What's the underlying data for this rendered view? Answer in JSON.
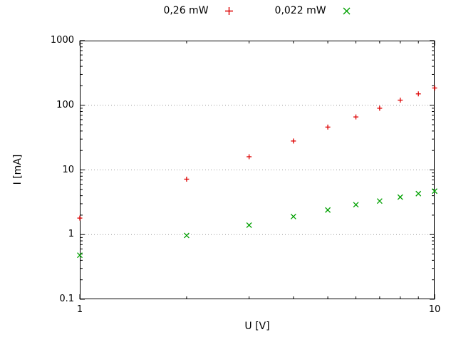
{
  "legend": {
    "position": "top"
  },
  "chart_data": {
    "type": "scatter",
    "title": "",
    "xlabel": "U [V]",
    "ylabel": "I [mA]",
    "xscale": "log",
    "yscale": "log",
    "xlim": [
      1,
      10
    ],
    "ylim": [
      0.1,
      1000
    ],
    "x_ticks": [
      1,
      10
    ],
    "y_ticks": [
      0.1,
      1,
      10,
      100,
      1000
    ],
    "grid_y": [
      1,
      10,
      100
    ],
    "grid_color": "#9a9a9a",
    "series": [
      {
        "name": "0,26 mW",
        "marker": "plus",
        "color": "#dd0000",
        "points": [
          [
            1,
            1.8
          ],
          [
            2,
            7.2
          ],
          [
            3,
            16
          ],
          [
            4,
            28
          ],
          [
            5,
            46
          ],
          [
            6,
            66
          ],
          [
            7,
            90
          ],
          [
            8,
            120
          ],
          [
            9,
            150
          ],
          [
            10,
            185
          ]
        ]
      },
      {
        "name": "0,022 mW",
        "marker": "cross",
        "color": "#00a000",
        "points": [
          [
            1,
            0.48
          ],
          [
            2,
            0.97
          ],
          [
            3,
            1.4
          ],
          [
            4,
            1.9
          ],
          [
            5,
            2.4
          ],
          [
            6,
            2.9
          ],
          [
            7,
            3.3
          ],
          [
            8,
            3.8
          ],
          [
            9,
            4.3
          ],
          [
            10,
            4.7
          ]
        ]
      }
    ]
  }
}
